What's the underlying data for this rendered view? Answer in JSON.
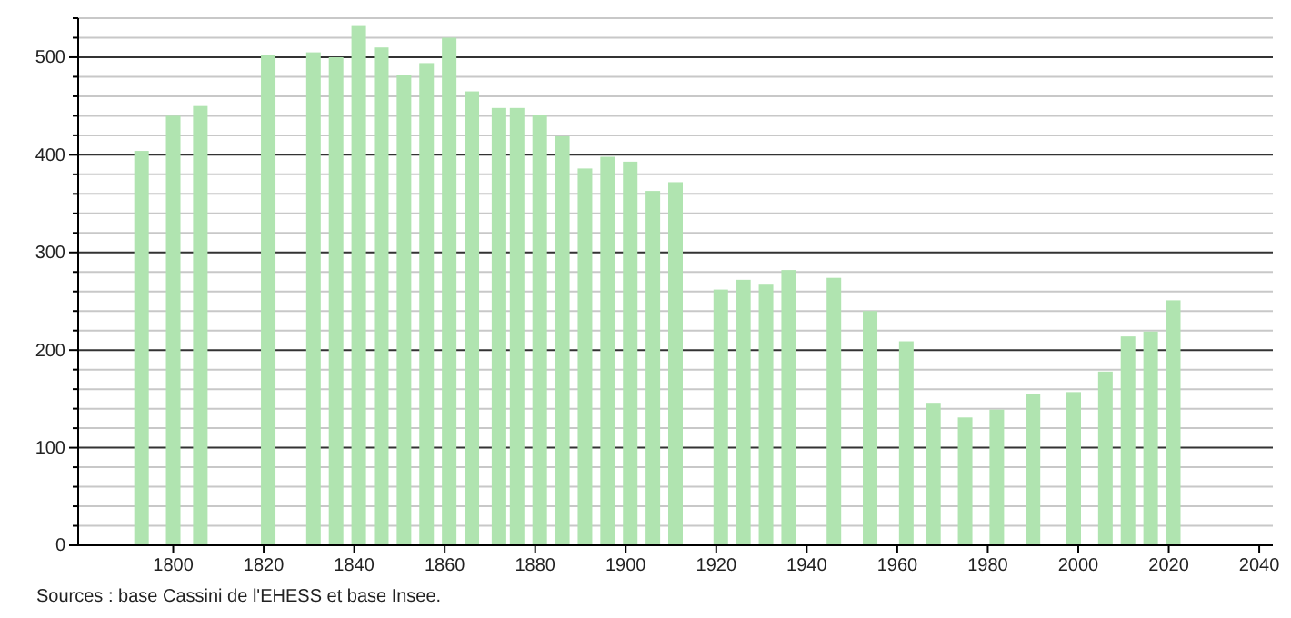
{
  "chart_data": {
    "type": "bar",
    "x": [
      1793,
      1800,
      1806,
      1821,
      1831,
      1836,
      1841,
      1846,
      1851,
      1856,
      1861,
      1866,
      1872,
      1876,
      1881,
      1886,
      1891,
      1896,
      1901,
      1906,
      1911,
      1921,
      1926,
      1931,
      1936,
      1946,
      1954,
      1962,
      1968,
      1975,
      1982,
      1990,
      1999,
      2006,
      2011,
      2016,
      2021
    ],
    "values": [
      404,
      440,
      450,
      502,
      505,
      500,
      532,
      510,
      482,
      494,
      520,
      465,
      448,
      448,
      441,
      419,
      386,
      398,
      393,
      363,
      372,
      262,
      272,
      267,
      282,
      274,
      240,
      209,
      146,
      131,
      139,
      155,
      157,
      178,
      214,
      219,
      251
    ],
    "color": "#b0e4b0",
    "xlim": [
      1779,
      2043
    ],
    "xticks": [
      1800,
      1820,
      1840,
      1860,
      1880,
      1900,
      1920,
      1940,
      1960,
      1980,
      2000,
      2020,
      2040
    ],
    "ylim": [
      0,
      540
    ],
    "yticks": [
      0,
      {
        "value": 20,
        "label": null
      },
      {
        "value": 40,
        "label": null
      },
      {
        "value": 60,
        "label": null
      },
      {
        "value": 80,
        "label": null
      },
      100,
      {
        "value": 120,
        "label": null
      },
      {
        "value": 140,
        "label": null
      },
      {
        "value": 160,
        "label": null
      },
      {
        "value": 180,
        "label": null
      },
      200,
      {
        "value": 220,
        "label": null
      },
      {
        "value": 240,
        "label": null
      },
      {
        "value": 260,
        "label": null
      },
      {
        "value": 280,
        "label": null
      },
      300,
      {
        "value": 320,
        "label": null
      },
      {
        "value": 340,
        "label": null
      },
      {
        "value": 360,
        "label": null
      },
      {
        "value": 380,
        "label": null
      },
      400,
      {
        "value": 420,
        "label": null
      },
      {
        "value": 440,
        "label": null
      },
      {
        "value": 460,
        "label": null
      },
      {
        "value": 480,
        "label": null
      },
      500,
      {
        "value": 520,
        "label": null
      },
      {
        "value": 540,
        "label": null
      }
    ],
    "grid": "y",
    "annotations": [
      "Sources : base Cassini de l'EHESS et base Insee."
    ]
  }
}
